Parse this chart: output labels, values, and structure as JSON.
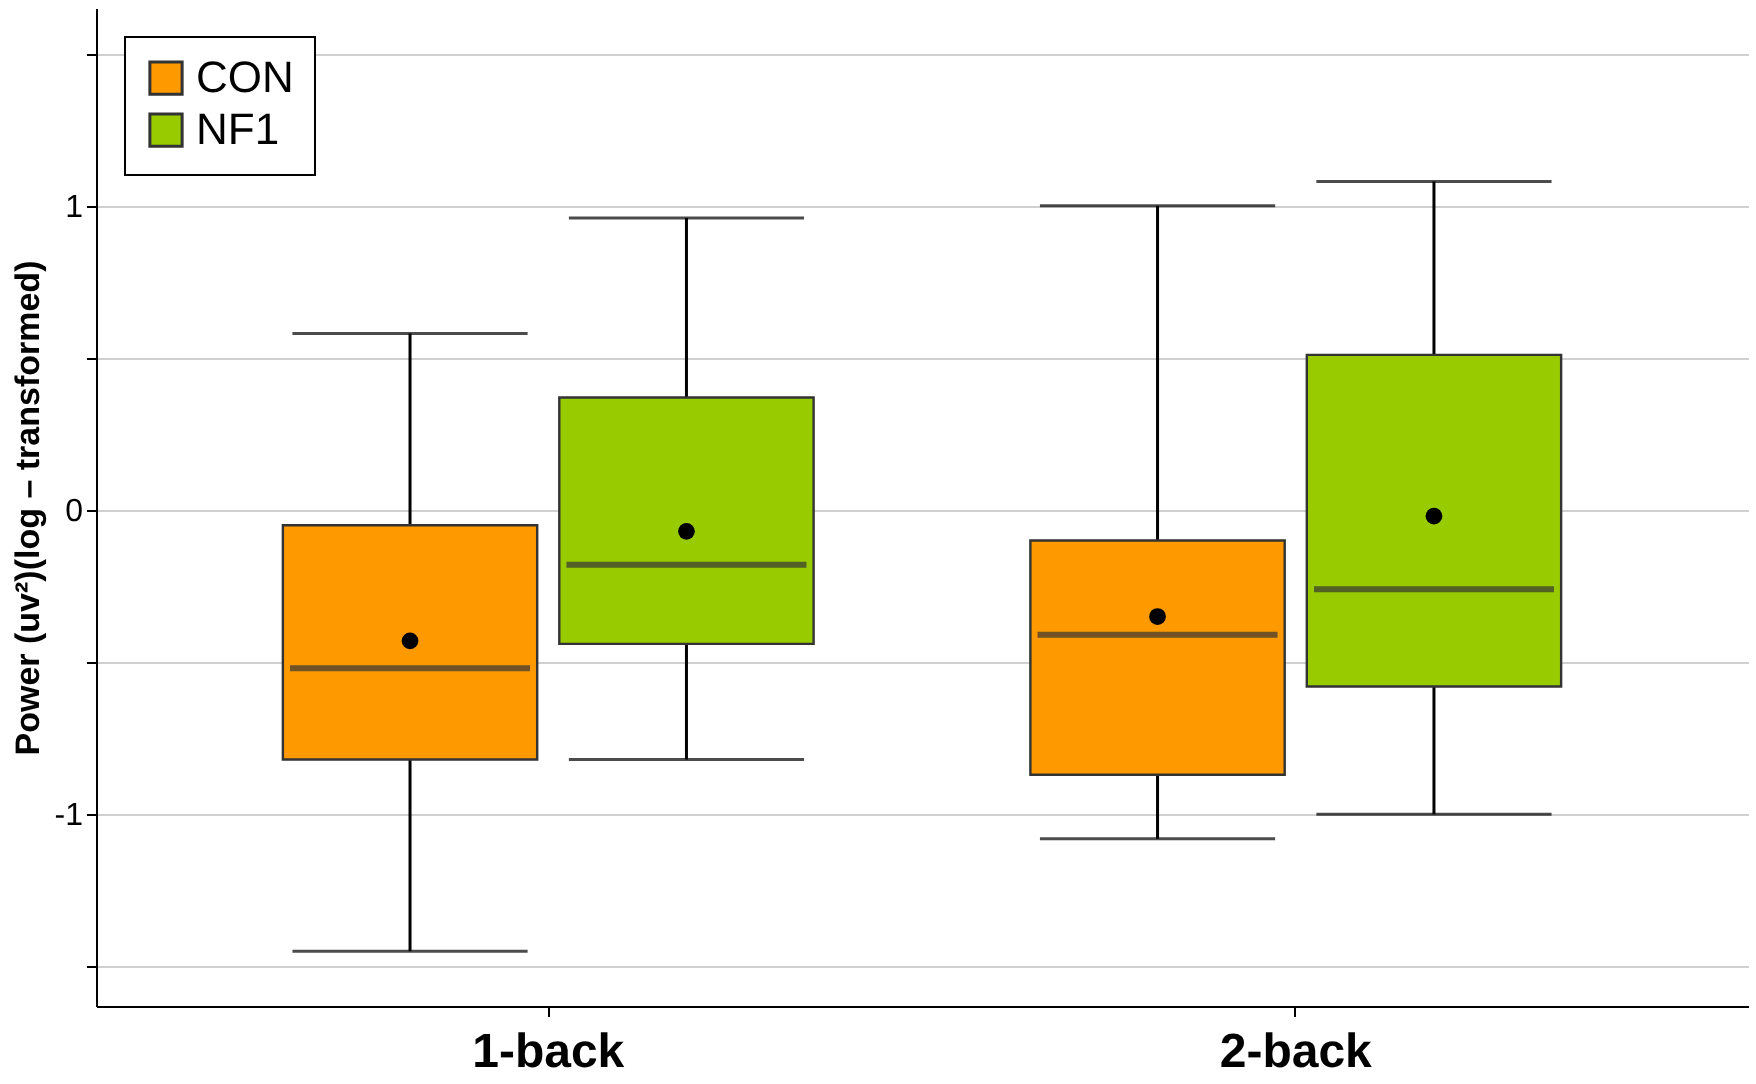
{
  "chart_data": {
    "type": "box",
    "ylabel": "Power (uv²)(log – transformed)",
    "categories": [
      "1-back",
      "2-back"
    ],
    "series": [
      {
        "name": "CON",
        "color": "#ff9900",
        "boxes": [
          {
            "low": -1.45,
            "q1": -0.82,
            "median": -0.52,
            "q3": -0.05,
            "high": 0.58,
            "mean": -0.43
          },
          {
            "low": -1.08,
            "q1": -0.87,
            "median": -0.41,
            "q3": -0.1,
            "high": 1.0,
            "mean": -0.35
          }
        ]
      },
      {
        "name": "NF1",
        "color": "#99cc00",
        "boxes": [
          {
            "low": -0.82,
            "q1": -0.44,
            "median": -0.18,
            "q3": 0.37,
            "high": 0.96,
            "mean": -0.07
          },
          {
            "low": -1.0,
            "q1": -0.58,
            "median": -0.26,
            "q3": 0.51,
            "high": 1.08,
            "mean": -0.02
          }
        ]
      }
    ],
    "ylim": [
      -1.63,
      1.65
    ],
    "yticks": [
      {
        "value": -1.5,
        "label": null
      },
      -1,
      {
        "value": -0.5,
        "label": null
      },
      0,
      {
        "value": 0.5,
        "label": null
      },
      1,
      {
        "value": 1.5,
        "label": null
      }
    ],
    "grid": "y",
    "legend": "top left"
  }
}
